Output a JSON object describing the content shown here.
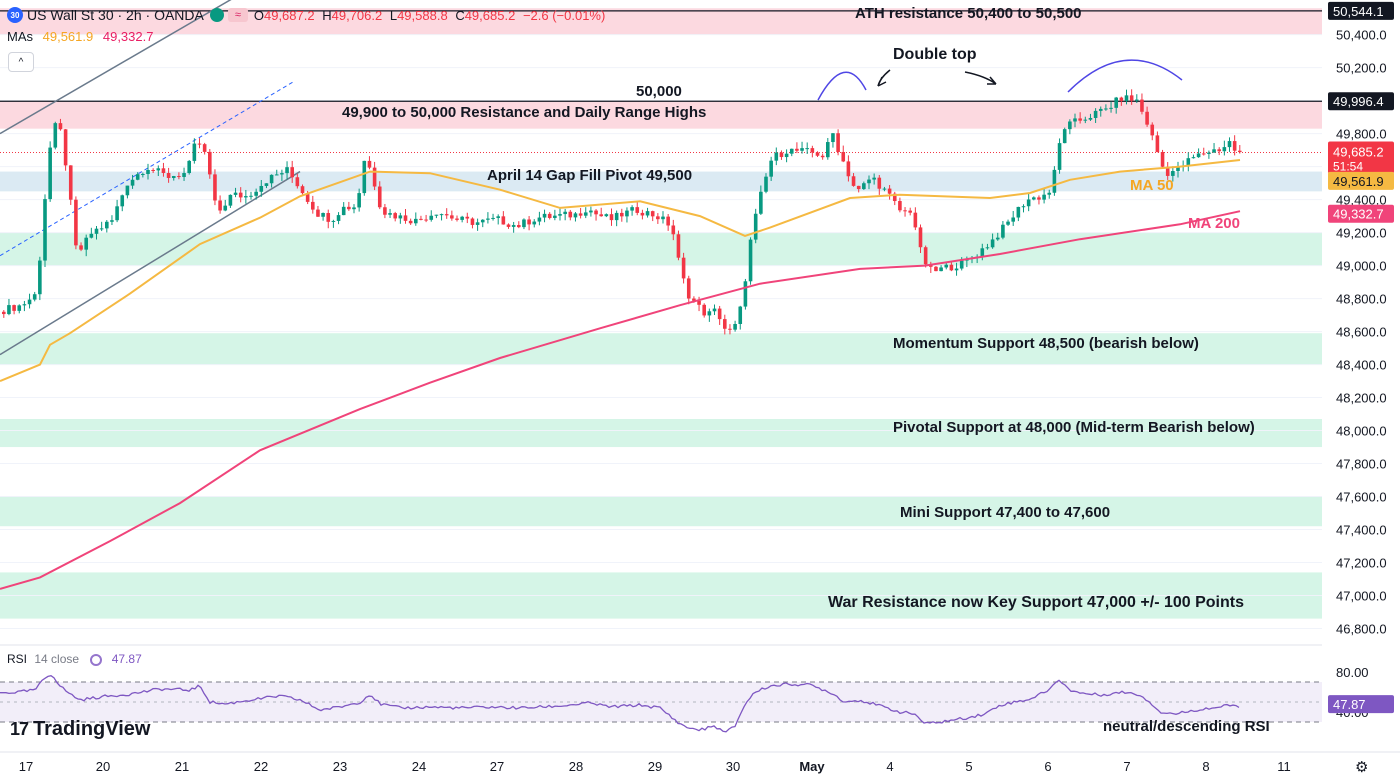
{
  "header": {
    "symbol_icon": "30",
    "title": "US Wall St 30 · 2h · OANDA",
    "wave_icon": "≈",
    "o_label": "O",
    "o": "49,687.2",
    "h_label": "H",
    "h": "49,706.2",
    "l_label": "L",
    "l": "49,588.8",
    "c_label": "C",
    "c": "49,685.2",
    "change": "−2.6 (−0.01%)"
  },
  "mas": {
    "label": "MAs",
    "ma50": "49,561.9",
    "ma200": "49,332.7"
  },
  "collapse_icon": "^",
  "rsi": {
    "label": "RSI",
    "settings": "14 close",
    "value": "47.87"
  },
  "logo": {
    "mark": "17",
    "text": "TradingView"
  },
  "colors": {
    "up": "#089981",
    "down": "#f23645",
    "ma50": "#f5b942",
    "ma200": "#f0447a",
    "rsi": "#7e57c2",
    "resistance_zone": "#fcd9e0",
    "support_zone": "#d5f5e7",
    "pivot_zone": "#dbeaf3"
  },
  "chart_data": {
    "type": "candlestick",
    "ylim": [
      46700,
      50610
    ],
    "y_ticks": [
      "50,400.0",
      "50,200.0",
      "50,000.0",
      "49,800.0",
      "49,600.0",
      "49,400.0",
      "49,200.0",
      "49,000.0",
      "48,800.0",
      "48,600.0",
      "48,400.0",
      "48,200.0",
      "48,000.0",
      "47,800.0",
      "47,600.0",
      "47,400.0",
      "47,200.0",
      "47,000.0",
      "46,800.0"
    ],
    "x_ticks": [
      "17",
      "20",
      "21",
      "22",
      "23",
      "24",
      "27",
      "28",
      "29",
      "30",
      "May",
      "4",
      "5",
      "6",
      "7",
      "8",
      "11"
    ],
    "ma_labels": {
      "ma50": "MA 50",
      "ma200": "MA 200"
    },
    "ma50_anchors": [
      [
        0,
        48300
      ],
      [
        40,
        48400
      ],
      [
        50,
        48520
      ],
      [
        70,
        48590
      ],
      [
        130,
        48830
      ],
      [
        200,
        49130
      ],
      [
        260,
        49290
      ],
      [
        300,
        49420
      ],
      [
        370,
        49570
      ],
      [
        430,
        49560
      ],
      [
        500,
        49460
      ],
      [
        560,
        49350
      ],
      [
        640,
        49390
      ],
      [
        700,
        49300
      ],
      [
        745,
        49180
      ],
      [
        770,
        49230
      ],
      [
        850,
        49410
      ],
      [
        900,
        49430
      ],
      [
        990,
        49410
      ],
      [
        1030,
        49440
      ],
      [
        1070,
        49520
      ],
      [
        1120,
        49570
      ],
      [
        1180,
        49600
      ],
      [
        1240,
        49640
      ]
    ],
    "ma200_anchors": [
      [
        0,
        47040
      ],
      [
        40,
        47110
      ],
      [
        110,
        47330
      ],
      [
        180,
        47560
      ],
      [
        260,
        47880
      ],
      [
        360,
        48130
      ],
      [
        430,
        48290
      ],
      [
        500,
        48440
      ],
      [
        600,
        48620
      ],
      [
        680,
        48760
      ],
      [
        760,
        48890
      ],
      [
        860,
        48980
      ],
      [
        925,
        49000
      ],
      [
        1000,
        49070
      ],
      [
        1080,
        49160
      ],
      [
        1180,
        49250
      ],
      [
        1240,
        49330
      ]
    ],
    "candle_anchors": [
      [
        0,
        48720
      ],
      [
        25,
        48760
      ],
      [
        40,
        48830
      ],
      [
        48,
        49400
      ],
      [
        55,
        49810
      ],
      [
        62,
        49870
      ],
      [
        70,
        49580
      ],
      [
        80,
        49060
      ],
      [
        95,
        49200
      ],
      [
        115,
        49270
      ],
      [
        130,
        49500
      ],
      [
        150,
        49600
      ],
      [
        170,
        49540
      ],
      [
        190,
        49560
      ],
      [
        200,
        49770
      ],
      [
        210,
        49650
      ],
      [
        220,
        49310
      ],
      [
        235,
        49430
      ],
      [
        250,
        49420
      ],
      [
        270,
        49520
      ],
      [
        290,
        49580
      ],
      [
        300,
        49500
      ],
      [
        320,
        49320
      ],
      [
        335,
        49280
      ],
      [
        345,
        49350
      ],
      [
        360,
        49360
      ],
      [
        368,
        49660
      ],
      [
        375,
        49560
      ],
      [
        385,
        49330
      ],
      [
        400,
        49300
      ],
      [
        420,
        49270
      ],
      [
        440,
        49330
      ],
      [
        460,
        49280
      ],
      [
        480,
        49260
      ],
      [
        500,
        49280
      ],
      [
        520,
        49240
      ],
      [
        540,
        49290
      ],
      [
        560,
        49300
      ],
      [
        580,
        49310
      ],
      [
        590,
        49350
      ],
      [
        600,
        49310
      ],
      [
        615,
        49280
      ],
      [
        625,
        49310
      ],
      [
        640,
        49340
      ],
      [
        660,
        49300
      ],
      [
        675,
        49240
      ],
      [
        683,
        48990
      ],
      [
        690,
        48840
      ],
      [
        700,
        48760
      ],
      [
        710,
        48700
      ],
      [
        720,
        48730
      ],
      [
        728,
        48620
      ],
      [
        735,
        48590
      ],
      [
        742,
        48680
      ],
      [
        748,
        48900
      ],
      [
        755,
        49200
      ],
      [
        765,
        49450
      ],
      [
        775,
        49650
      ],
      [
        790,
        49700
      ],
      [
        810,
        49690
      ],
      [
        820,
        49680
      ],
      [
        828,
        49660
      ],
      [
        835,
        49820
      ],
      [
        843,
        49680
      ],
      [
        850,
        49580
      ],
      [
        860,
        49440
      ],
      [
        875,
        49540
      ],
      [
        890,
        49440
      ],
      [
        905,
        49320
      ],
      [
        915,
        49340
      ],
      [
        925,
        49050
      ],
      [
        935,
        48960
      ],
      [
        950,
        48990
      ],
      [
        965,
        49010
      ],
      [
        980,
        49070
      ],
      [
        995,
        49150
      ],
      [
        1010,
        49250
      ],
      [
        1020,
        49330
      ],
      [
        1030,
        49400
      ],
      [
        1045,
        49420
      ],
      [
        1053,
        49450
      ],
      [
        1060,
        49620
      ],
      [
        1065,
        49830
      ],
      [
        1075,
        49860
      ],
      [
        1090,
        49900
      ],
      [
        1110,
        49950
      ],
      [
        1125,
        50020
      ],
      [
        1140,
        50000
      ],
      [
        1150,
        49870
      ],
      [
        1160,
        49700
      ],
      [
        1168,
        49560
      ],
      [
        1180,
        49580
      ],
      [
        1195,
        49650
      ],
      [
        1210,
        49690
      ],
      [
        1225,
        49710
      ],
      [
        1233,
        49750
      ],
      [
        1240,
        49680
      ]
    ],
    "annotations": [
      {
        "text": "ATH resistance 50,400 to 50,500",
        "type": "zone",
        "from": 50400,
        "to": 50560,
        "color": "resistance"
      },
      {
        "text": "49,900 to 50,000 Resistance and Daily Range Highs",
        "type": "zone",
        "from": 49830,
        "to": 50000,
        "color": "resistance"
      },
      {
        "text": "50,000",
        "type": "line",
        "value": 50000
      },
      {
        "text": "April 14 Gap Fill Pivot 49,500",
        "type": "zone",
        "from": 49450,
        "to": 49570,
        "color": "pivot"
      },
      {
        "text": "Momentum Support 48,500 (bearish below)",
        "type": "zone",
        "from": 48400,
        "to": 48590,
        "color": "support"
      },
      {
        "text": "Pivotal Support at 48,000 (Mid-term Bearish below)",
        "type": "zone",
        "from": 47900,
        "to": 48070,
        "color": "support"
      },
      {
        "text": "Mini Support 47,400 to 47,600",
        "type": "zone",
        "from": 47420,
        "to": 47600,
        "color": "support"
      },
      {
        "text": "War Resistance now Key Support 47,000 +/- 100 Points",
        "type": "zone",
        "from": 46860,
        "to": 47140,
        "color": "support"
      },
      {
        "text": "Double top",
        "type": "note"
      }
    ],
    "upper_zone": {
      "from": 49000,
      "to": 49200
    },
    "price_labels": {
      "ath": "50,544.1",
      "resistance": "49,996.4",
      "last": "49,685.2",
      "countdown": "51:54",
      "ma50": "49,561.9",
      "ma200": "49,332.7"
    },
    "rsi": {
      "ticks": [
        "80.00",
        "40.00"
      ],
      "upper": 70,
      "lower": 30,
      "value_label": "47.87",
      "annotation": "neutral/descending RSI",
      "anchors": [
        [
          0,
          59
        ],
        [
          20,
          60
        ],
        [
          35,
          62
        ],
        [
          45,
          74
        ],
        [
          52,
          78
        ],
        [
          60,
          66
        ],
        [
          70,
          58
        ],
        [
          80,
          52
        ],
        [
          100,
          55
        ],
        [
          130,
          58
        ],
        [
          160,
          63
        ],
        [
          190,
          62
        ],
        [
          200,
          66
        ],
        [
          210,
          50
        ],
        [
          225,
          48
        ],
        [
          250,
          52
        ],
        [
          280,
          56
        ],
        [
          300,
          52
        ],
        [
          320,
          42
        ],
        [
          340,
          45
        ],
        [
          360,
          50
        ],
        [
          370,
          58
        ],
        [
          380,
          48
        ],
        [
          400,
          44
        ],
        [
          430,
          45
        ],
        [
          460,
          44
        ],
        [
          490,
          45
        ],
        [
          520,
          44
        ],
        [
          560,
          46
        ],
        [
          590,
          49
        ],
        [
          610,
          45
        ],
        [
          640,
          47
        ],
        [
          660,
          44
        ],
        [
          675,
          32
        ],
        [
          685,
          25
        ],
        [
          700,
          22
        ],
        [
          715,
          26
        ],
        [
          725,
          19
        ],
        [
          735,
          26
        ],
        [
          745,
          48
        ],
        [
          755,
          60
        ],
        [
          770,
          66
        ],
        [
          790,
          68
        ],
        [
          810,
          67
        ],
        [
          830,
          60
        ],
        [
          845,
          50
        ],
        [
          860,
          52
        ],
        [
          880,
          46
        ],
        [
          900,
          40
        ],
        [
          915,
          38
        ],
        [
          925,
          28
        ],
        [
          940,
          30
        ],
        [
          960,
          33
        ],
        [
          985,
          38
        ],
        [
          1000,
          47
        ],
        [
          1015,
          50
        ],
        [
          1030,
          53
        ],
        [
          1045,
          60
        ],
        [
          1060,
          72
        ],
        [
          1070,
          62
        ],
        [
          1080,
          59
        ],
        [
          1100,
          57
        ],
        [
          1125,
          60
        ],
        [
          1140,
          57
        ],
        [
          1150,
          50
        ],
        [
          1160,
          40
        ],
        [
          1175,
          38
        ],
        [
          1195,
          42
        ],
        [
          1220,
          45
        ],
        [
          1232,
          47
        ],
        [
          1240,
          44
        ]
      ]
    }
  }
}
